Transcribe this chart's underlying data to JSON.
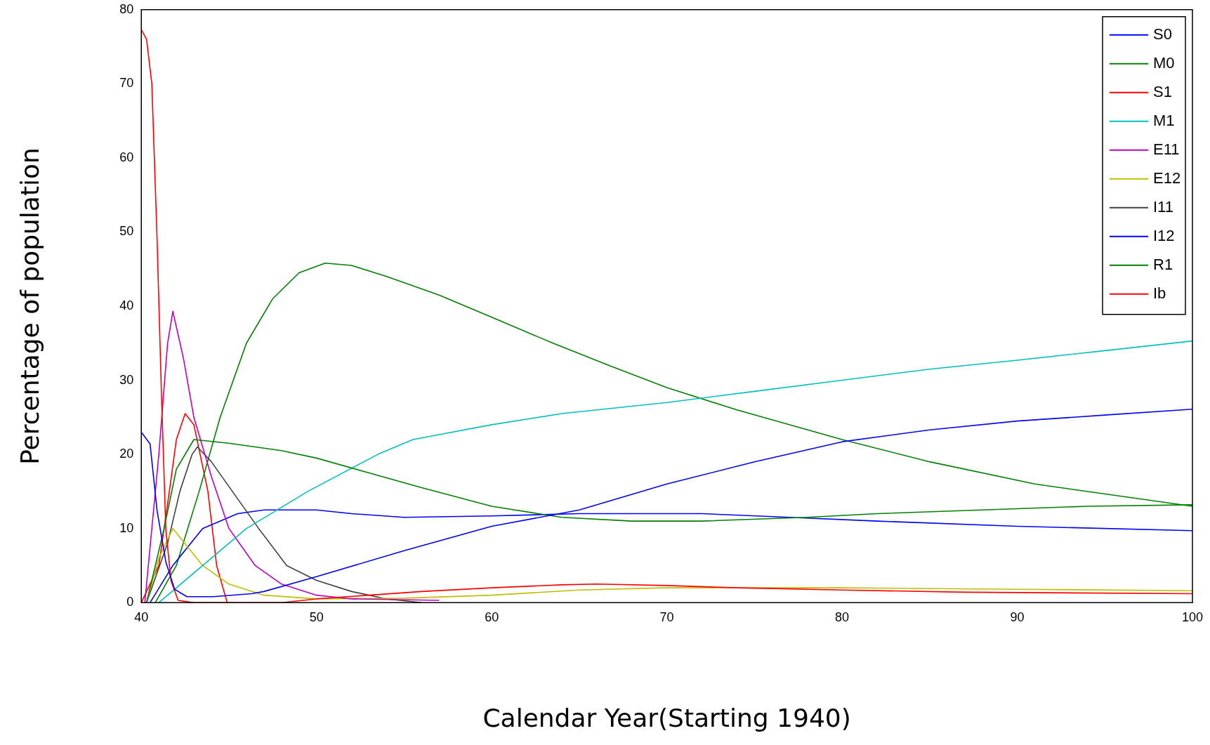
{
  "chart_data": {
    "type": "line",
    "xlabel": "Calendar Year(Starting 1940)",
    "ylabel": "Percentage of population",
    "xlim": [
      40,
      100
    ],
    "ylim": [
      0,
      80
    ],
    "xticks": [
      40,
      50,
      60,
      70,
      80,
      90,
      100
    ],
    "yticks": [
      0,
      10,
      20,
      30,
      40,
      50,
      60,
      70,
      80
    ],
    "legend": "top right",
    "grid": false,
    "marker": "none",
    "line_style": "solid",
    "series": [
      {
        "name": "S0",
        "color": "#0000ff",
        "x": [
          40,
          40.5,
          40.9,
          41.4,
          41.9,
          42.6,
          44.1,
          46.3,
          47,
          50,
          55,
          60,
          65,
          70,
          75,
          80,
          85,
          90,
          95,
          100
        ],
        "values": [
          23,
          21.4,
          12.4,
          5.5,
          1.8,
          0.8,
          0.8,
          1.2,
          1.5,
          3.5,
          7,
          10.3,
          12.5,
          16,
          19,
          21.7,
          23.3,
          24.5,
          25.3,
          26.1
        ]
      },
      {
        "name": "M0",
        "color": "#008000",
        "x": [
          40.3,
          41.3,
          42,
          43,
          45,
          48,
          50,
          53,
          56,
          60,
          64,
          68,
          72,
          78,
          82,
          88,
          94,
          100
        ],
        "values": [
          0,
          10,
          18,
          22,
          21.5,
          20.5,
          19.5,
          17.5,
          15.5,
          13,
          11.5,
          11,
          11,
          11.5,
          12,
          12.5,
          13,
          13.2
        ]
      },
      {
        "name": "S1",
        "color": "#ff0000",
        "x": [
          40,
          40.3,
          40.6,
          40.9,
          41.15,
          41.4,
          41.7,
          42.1,
          43,
          48,
          50,
          53,
          56,
          60,
          64,
          66,
          70,
          74,
          80,
          87,
          100
        ],
        "values": [
          77.3,
          76,
          70,
          49,
          28,
          9.8,
          2.9,
          0.3,
          0,
          0,
          0.5,
          1,
          1.5,
          2,
          2.4,
          2.5,
          2.3,
          2,
          1.7,
          1.4,
          1.2
        ]
      },
      {
        "name": "M1",
        "color": "#00bfbf",
        "x": [
          41,
          42,
          43.5,
          46,
          49.5,
          53.5,
          55.5,
          60,
          64,
          70,
          75,
          80,
          85,
          90,
          95,
          100
        ],
        "values": [
          0,
          2,
          5,
          10,
          15,
          20,
          22,
          24,
          25.5,
          27,
          28.5,
          30,
          31.5,
          32.7,
          34,
          35.3
        ]
      },
      {
        "name": "E11",
        "color": "#bf00bf",
        "x": [
          40.2,
          41,
          41.5,
          41.8,
          42.4,
          43,
          44,
          45,
          46.5,
          48,
          50,
          52,
          57
        ],
        "values": [
          0,
          20,
          35,
          39.3,
          33,
          25,
          17,
          10,
          5,
          2.5,
          1,
          0.5,
          0.3
        ]
      },
      {
        "name": "E12",
        "color": "#bfbf00",
        "x": [
          40.3,
          41,
          41.8,
          43.5,
          45,
          47,
          50,
          55,
          60,
          65,
          70,
          80,
          90,
          100
        ],
        "values": [
          0,
          6,
          10,
          5,
          2.5,
          1,
          0.5,
          0.6,
          1,
          1.7,
          2,
          2,
          1.8,
          1.6
        ]
      },
      {
        "name": "I11",
        "color": "#404040",
        "x": [
          40.3,
          41.5,
          42.2,
          42.9,
          43.2,
          44,
          45.2,
          46.7,
          48.3,
          50,
          52,
          54,
          56
        ],
        "values": [
          0,
          8,
          15,
          20,
          21,
          19,
          15,
          10,
          5,
          3,
          1.5,
          0.5,
          0
        ]
      },
      {
        "name": "I12",
        "color": "#0000ff",
        "x": [
          40.5,
          41.8,
          43.5,
          45.5,
          47,
          50,
          52,
          55,
          60,
          65,
          72,
          77,
          82,
          90,
          100
        ],
        "values": [
          0,
          5,
          10,
          12,
          12.5,
          12.5,
          12,
          11.5,
          11.7,
          12,
          12,
          11.5,
          11,
          10.3,
          9.7
        ]
      },
      {
        "name": "R1",
        "color": "#008000",
        "x": [
          40.8,
          42,
          43.3,
          44.5,
          46,
          47.5,
          49,
          50.5,
          52,
          54,
          57,
          60,
          63.5,
          66.7,
          70,
          74,
          80,
          85,
          91,
          100
        ],
        "values": [
          0,
          5,
          15,
          25,
          35,
          41,
          44.5,
          45.8,
          45.5,
          44,
          41.5,
          38.5,
          35,
          32,
          29,
          26,
          22,
          19,
          16,
          13
        ]
      },
      {
        "name": "Ib",
        "color": "#ff0000",
        "x": [
          40,
          41,
          41.6,
          42,
          42.5,
          43,
          43.8,
          44.3,
          44.9
        ],
        "values": [
          0,
          5,
          15,
          22,
          25.5,
          24,
          15,
          5,
          0
        ]
      }
    ]
  }
}
